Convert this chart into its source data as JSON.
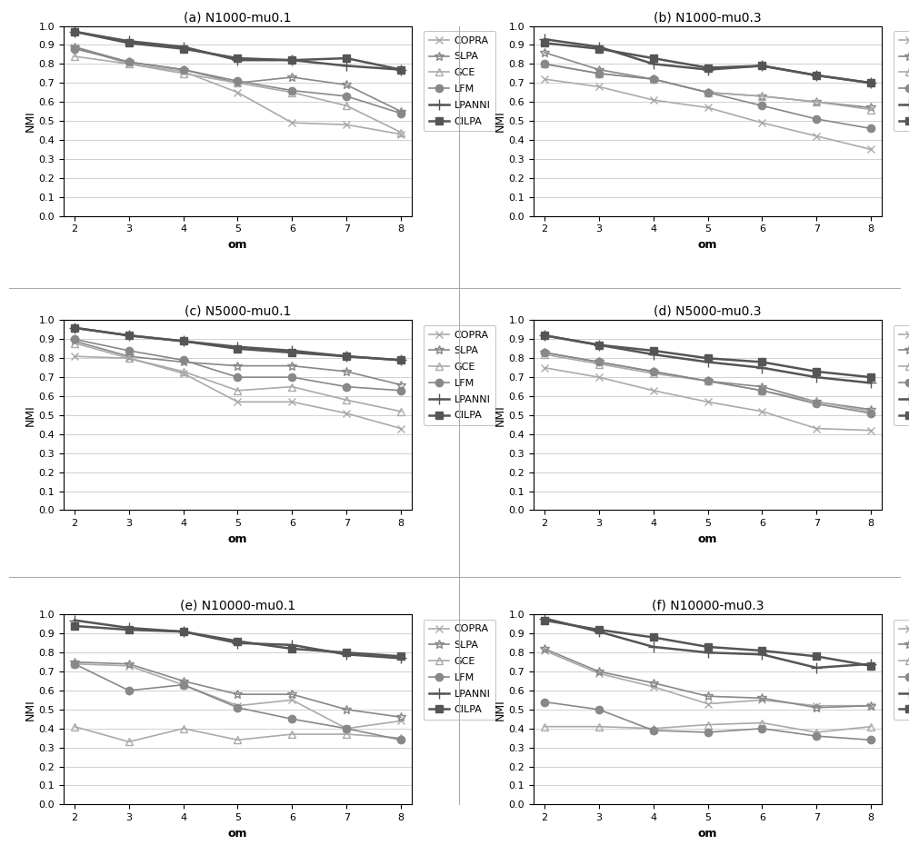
{
  "x": [
    2,
    3,
    4,
    5,
    6,
    7,
    8
  ],
  "plots": [
    {
      "title": "(a) N1000-mu0.1",
      "series": {
        "COPRA": [
          0.89,
          0.8,
          0.76,
          0.65,
          0.49,
          0.48,
          0.43
        ],
        "SLPA": [
          0.89,
          0.81,
          0.77,
          0.7,
          0.73,
          0.69,
          0.55
        ],
        "GCE": [
          0.84,
          0.8,
          0.75,
          0.7,
          0.65,
          0.58,
          0.44
        ],
        "LFM": [
          0.88,
          0.81,
          0.77,
          0.71,
          0.66,
          0.63,
          0.54
        ],
        "LPANNI": [
          0.97,
          0.92,
          0.89,
          0.82,
          0.82,
          0.79,
          0.77
        ],
        "CILPA": [
          0.97,
          0.91,
          0.88,
          0.83,
          0.82,
          0.83,
          0.77
        ]
      }
    },
    {
      "title": "(b) N1000-mu0.3",
      "series": {
        "COPRA": [
          0.72,
          0.68,
          0.61,
          0.57,
          0.49,
          0.42,
          0.35
        ],
        "SLPA": [
          0.86,
          0.77,
          0.72,
          0.65,
          0.63,
          0.6,
          0.57
        ],
        "GCE": [
          0.8,
          0.75,
          0.72,
          0.65,
          0.63,
          0.6,
          0.56
        ],
        "LFM": [
          0.8,
          0.75,
          0.72,
          0.65,
          0.58,
          0.51,
          0.46
        ],
        "LPANNI": [
          0.93,
          0.89,
          0.8,
          0.77,
          0.79,
          0.74,
          0.7
        ],
        "CILPA": [
          0.91,
          0.88,
          0.83,
          0.78,
          0.79,
          0.74,
          0.7
        ]
      }
    },
    {
      "title": "(c) N5000-mu0.1",
      "series": {
        "COPRA": [
          0.81,
          0.8,
          0.72,
          0.57,
          0.57,
          0.51,
          0.43
        ],
        "SLPA": [
          0.89,
          0.81,
          0.78,
          0.76,
          0.76,
          0.73,
          0.66
        ],
        "GCE": [
          0.88,
          0.8,
          0.73,
          0.63,
          0.65,
          0.58,
          0.52
        ],
        "LFM": [
          0.9,
          0.84,
          0.79,
          0.7,
          0.7,
          0.65,
          0.63
        ],
        "LPANNI": [
          0.96,
          0.92,
          0.89,
          0.86,
          0.84,
          0.81,
          0.79
        ],
        "CILPA": [
          0.96,
          0.92,
          0.89,
          0.85,
          0.83,
          0.81,
          0.79
        ]
      }
    },
    {
      "title": "(d) N5000-mu0.3",
      "series": {
        "COPRA": [
          0.75,
          0.7,
          0.63,
          0.57,
          0.52,
          0.43,
          0.42
        ],
        "SLPA": [
          0.83,
          0.78,
          0.73,
          0.68,
          0.65,
          0.57,
          0.53
        ],
        "GCE": [
          0.82,
          0.77,
          0.72,
          0.68,
          0.63,
          0.57,
          0.52
        ],
        "LFM": [
          0.83,
          0.78,
          0.73,
          0.68,
          0.63,
          0.56,
          0.51
        ],
        "LPANNI": [
          0.92,
          0.87,
          0.82,
          0.78,
          0.75,
          0.7,
          0.67
        ],
        "CILPA": [
          0.92,
          0.87,
          0.84,
          0.8,
          0.78,
          0.73,
          0.7
        ]
      }
    },
    {
      "title": "(e) N10000-mu0.1",
      "series": {
        "COPRA": [
          0.74,
          0.73,
          0.63,
          0.52,
          0.55,
          0.4,
          0.44
        ],
        "SLPA": [
          0.75,
          0.74,
          0.65,
          0.58,
          0.58,
          0.5,
          0.46
        ],
        "GCE": [
          0.41,
          0.33,
          0.4,
          0.34,
          0.37,
          0.37,
          0.35
        ],
        "LFM": [
          0.74,
          0.6,
          0.63,
          0.51,
          0.45,
          0.4,
          0.34
        ],
        "LPANNI": [
          0.97,
          0.93,
          0.91,
          0.85,
          0.84,
          0.79,
          0.77
        ],
        "CILPA": [
          0.94,
          0.92,
          0.91,
          0.86,
          0.82,
          0.8,
          0.78
        ]
      }
    },
    {
      "title": "(f) N10000-mu0.3",
      "series": {
        "COPRA": [
          0.81,
          0.69,
          0.62,
          0.53,
          0.55,
          0.52,
          0.52
        ],
        "SLPA": [
          0.82,
          0.7,
          0.64,
          0.57,
          0.56,
          0.51,
          0.52
        ],
        "GCE": [
          0.41,
          0.41,
          0.4,
          0.42,
          0.43,
          0.38,
          0.41
        ],
        "LFM": [
          0.54,
          0.5,
          0.39,
          0.38,
          0.4,
          0.36,
          0.34
        ],
        "LPANNI": [
          0.98,
          0.91,
          0.83,
          0.8,
          0.79,
          0.72,
          0.74
        ],
        "CILPA": [
          0.97,
          0.92,
          0.88,
          0.83,
          0.81,
          0.78,
          0.73
        ]
      }
    }
  ],
  "series_styles": {
    "COPRA": {
      "color": "#aaaaaa",
      "marker": "x",
      "linewidth": 1.2,
      "markersize": 6,
      "fillstyle": "none"
    },
    "SLPA": {
      "color": "#888888",
      "marker": "*",
      "linewidth": 1.2,
      "markersize": 7,
      "fillstyle": "none"
    },
    "GCE": {
      "color": "#aaaaaa",
      "marker": "^",
      "linewidth": 1.2,
      "markersize": 6,
      "fillstyle": "none"
    },
    "LFM": {
      "color": "#888888",
      "marker": "o",
      "linewidth": 1.2,
      "markersize": 6,
      "fillstyle": "full"
    },
    "LPANNI": {
      "color": "#555555",
      "marker": "+",
      "linewidth": 1.8,
      "markersize": 8,
      "fillstyle": "none"
    },
    "CILPA": {
      "color": "#555555",
      "marker": "s",
      "linewidth": 1.8,
      "markersize": 6,
      "fillstyle": "full"
    }
  },
  "xlabel": "om",
  "ylabel": "NMI",
  "ylim": [
    0,
    1.0
  ],
  "yticks": [
    0,
    0.1,
    0.2,
    0.3,
    0.4,
    0.5,
    0.6,
    0.7,
    0.8,
    0.9,
    1
  ],
  "xticks": [
    2,
    3,
    4,
    5,
    6,
    7,
    8
  ],
  "background_color": "#ffffff",
  "grid_color": "#d0d0d0",
  "legend_order": [
    "COPRA",
    "SLPA",
    "GCE",
    "LFM",
    "LPANNI",
    "CILPA"
  ]
}
